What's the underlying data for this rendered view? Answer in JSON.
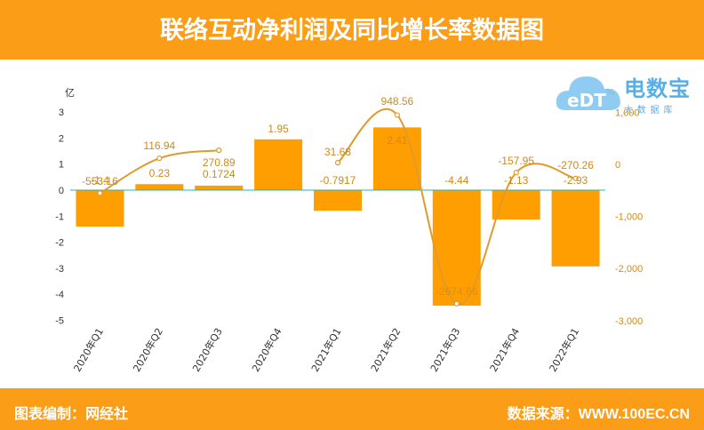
{
  "header": {
    "title": "联络互动净利润及同比增长率数据图"
  },
  "footer": {
    "editor": "图表编制：网经社",
    "source": "数据来源：WWW.100EC.CN"
  },
  "logo": {
    "brand": "电数宝",
    "sub": "大 数 据 库",
    "icon": "cloud-logo-icon"
  },
  "colors": {
    "banner": "#fc9d17",
    "bar": "#fe9e00",
    "line": "#e09a2c",
    "zero_line": "#2bb3b8",
    "label": "#cf8a1a",
    "axis_text": "#333333"
  },
  "chart_data": {
    "type": "bar+line",
    "categories": [
      "2020年Q1",
      "2020年Q2",
      "2020年Q3",
      "2020年Q4",
      "2021年Q1",
      "2021年Q2",
      "2021年Q3",
      "2021年Q4",
      "2022年Q1"
    ],
    "series": [
      {
        "axis": "left",
        "type": "bar",
        "values": [
          -1.4,
          0.23,
          0.1724,
          1.95,
          -0.7917,
          2.41,
          -4.44,
          -1.13,
          -2.93
        ],
        "labels": [
          "-1.4",
          "0.23",
          "0.1724",
          "1.95",
          "-0.7917",
          "2.41",
          "-4.44",
          "-1.13",
          "-2.93"
        ]
      },
      {
        "axis": "right",
        "type": "line",
        "values": [
          -553.16,
          116.94,
          270.89,
          null,
          31.68,
          948.56,
          -2674.66,
          -157.95,
          -270.26
        ],
        "labels": [
          "-553.16",
          "116.94",
          "270.89",
          "",
          "31.68",
          "948.56",
          "-2674.66",
          "-157.95",
          "-270.26"
        ]
      }
    ],
    "left_axis": {
      "unit": "亿",
      "min": -5,
      "max": 3,
      "ticks": [
        3,
        2,
        1,
        0,
        -1,
        -2,
        -3,
        -4,
        -5
      ]
    },
    "right_axis": {
      "unit": "%",
      "min": -3000,
      "max": 1000,
      "ticks": [
        1000,
        0,
        -1000,
        -2000,
        -3000
      ],
      "tick_labels": [
        "1,000",
        "0",
        "-1,000",
        "-2,000",
        "-3,000"
      ]
    },
    "grid": false,
    "legend": "none"
  }
}
